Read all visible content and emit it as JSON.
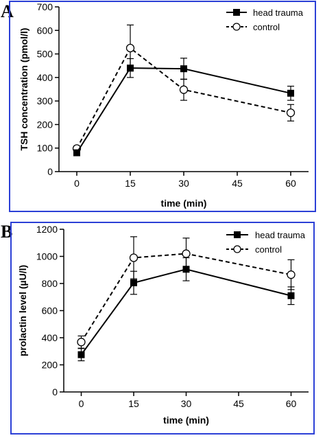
{
  "panels": [
    {
      "letter": "A"
    },
    {
      "letter": "B"
    }
  ],
  "colors": {
    "frame": "#2b3fd6",
    "ink": "#000000"
  },
  "chart_data": [
    {
      "type": "line",
      "panel": "A",
      "x": [
        0,
        15,
        30,
        60
      ],
      "xticks": [
        0,
        15,
        30,
        45,
        60
      ],
      "xticklabels": [
        "0",
        "15",
        "30",
        "45",
        "60"
      ],
      "xlim": [
        -5,
        65
      ],
      "xlabel": "time (min)",
      "ylabel": "TSH concentration (pmol/l)",
      "ylim": [
        0,
        700
      ],
      "yticks": [
        0,
        100,
        200,
        300,
        400,
        500,
        600,
        700
      ],
      "yticklabels": [
        "0",
        "100",
        "200",
        "300",
        "400",
        "500",
        "600",
        "700"
      ],
      "legend_position": "top-right",
      "series": [
        {
          "name": "head trauma",
          "marker": "filled-square",
          "line": "solid",
          "values": [
            80,
            440,
            437,
            333
          ],
          "errors": [
            10,
            40,
            45,
            30
          ]
        },
        {
          "name": "control",
          "marker": "open-circle",
          "line": "dashed",
          "values": [
            98,
            525,
            348,
            250
          ],
          "errors": [
            10,
            98,
            45,
            35
          ]
        }
      ]
    },
    {
      "type": "line",
      "panel": "B",
      "x": [
        0,
        15,
        30,
        60
      ],
      "xticks": [
        0,
        15,
        30,
        45,
        60
      ],
      "xticklabels": [
        "0",
        "15",
        "30",
        "45",
        "60"
      ],
      "xlim": [
        -5,
        65
      ],
      "xlabel": "time (min)",
      "ylabel": "prolactin level (µU/l)",
      "ylim": [
        0,
        1200
      ],
      "yticks": [
        0,
        200,
        400,
        600,
        800,
        1000,
        1200
      ],
      "yticklabels": [
        "0",
        "200",
        "400",
        "600",
        "800",
        "1000",
        "1200"
      ],
      "legend_position": "top-right",
      "series": [
        {
          "name": "head trauma",
          "marker": "filled-square",
          "line": "solid",
          "values": [
            275,
            805,
            905,
            710
          ],
          "errors": [
            45,
            85,
            85,
            65
          ]
        },
        {
          "name": "control",
          "marker": "open-circle",
          "line": "dashed",
          "values": [
            368,
            990,
            1020,
            865
          ],
          "errors": [
            45,
            155,
            115,
            110
          ]
        }
      ]
    }
  ]
}
